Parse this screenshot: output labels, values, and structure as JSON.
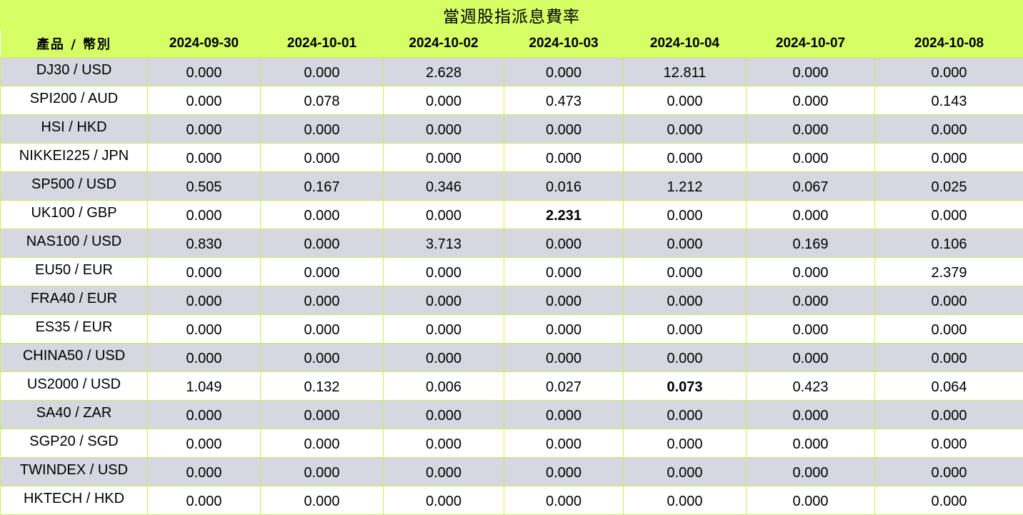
{
  "title": "當週股指派息費率",
  "header": {
    "product_label": "產品 / 幣別",
    "dates": [
      "2024-09-30",
      "2024-10-01",
      "2024-10-02",
      "2024-10-03",
      "2024-10-04",
      "2024-10-07",
      "2024-10-08"
    ]
  },
  "rows": [
    {
      "product": "DJ30 / USD",
      "values": [
        "0.000",
        "0.000",
        "2.628",
        "0.000",
        "12.811",
        "0.000",
        "0.000"
      ],
      "bold": []
    },
    {
      "product": "SPI200 / AUD",
      "values": [
        "0.000",
        "0.078",
        "0.000",
        "0.473",
        "0.000",
        "0.000",
        "0.143"
      ],
      "bold": []
    },
    {
      "product": "HSI / HKD",
      "values": [
        "0.000",
        "0.000",
        "0.000",
        "0.000",
        "0.000",
        "0.000",
        "0.000"
      ],
      "bold": []
    },
    {
      "product": "NIKKEI225 / JPN",
      "values": [
        "0.000",
        "0.000",
        "0.000",
        "0.000",
        "0.000",
        "0.000",
        "0.000"
      ],
      "bold": []
    },
    {
      "product": "SP500 / USD",
      "values": [
        "0.505",
        "0.167",
        "0.346",
        "0.016",
        "1.212",
        "0.067",
        "0.025"
      ],
      "bold": []
    },
    {
      "product": "UK100 / GBP",
      "values": [
        "0.000",
        "0.000",
        "0.000",
        "2.231",
        "0.000",
        "0.000",
        "0.000"
      ],
      "bold": [
        3
      ]
    },
    {
      "product": "NAS100 / USD",
      "values": [
        "0.830",
        "0.000",
        "3.713",
        "0.000",
        "0.000",
        "0.169",
        "0.106"
      ],
      "bold": []
    },
    {
      "product": "EU50 / EUR",
      "values": [
        "0.000",
        "0.000",
        "0.000",
        "0.000",
        "0.000",
        "0.000",
        "2.379"
      ],
      "bold": []
    },
    {
      "product": "FRA40 / EUR",
      "values": [
        "0.000",
        "0.000",
        "0.000",
        "0.000",
        "0.000",
        "0.000",
        "0.000"
      ],
      "bold": []
    },
    {
      "product": "ES35 / EUR",
      "values": [
        "0.000",
        "0.000",
        "0.000",
        "0.000",
        "0.000",
        "0.000",
        "0.000"
      ],
      "bold": []
    },
    {
      "product": "CHINA50 / USD",
      "values": [
        "0.000",
        "0.000",
        "0.000",
        "0.000",
        "0.000",
        "0.000",
        "0.000"
      ],
      "bold": []
    },
    {
      "product": "US2000 / USD",
      "values": [
        "1.049",
        "0.132",
        "0.006",
        "0.027",
        "0.073",
        "0.423",
        "0.064"
      ],
      "bold": [
        4
      ]
    },
    {
      "product": "SA40 / ZAR",
      "values": [
        "0.000",
        "0.000",
        "0.000",
        "0.000",
        "0.000",
        "0.000",
        "0.000"
      ],
      "bold": []
    },
    {
      "product": "SGP20 / SGD",
      "values": [
        "0.000",
        "0.000",
        "0.000",
        "0.000",
        "0.000",
        "0.000",
        "0.000"
      ],
      "bold": []
    },
    {
      "product": "TWINDEX / USD",
      "values": [
        "0.000",
        "0.000",
        "0.000",
        "0.000",
        "0.000",
        "0.000",
        "0.000"
      ],
      "bold": []
    },
    {
      "product": "HKTECH / HKD",
      "values": [
        "0.000",
        "0.000",
        "0.000",
        "0.000",
        "0.000",
        "0.000",
        "0.000"
      ],
      "bold": []
    }
  ],
  "colors": {
    "header_bg": "#d6ff66",
    "row_shaded": "#d6d7e0",
    "row_plain": "#ffffff",
    "grid_line": "#c9ef55"
  }
}
